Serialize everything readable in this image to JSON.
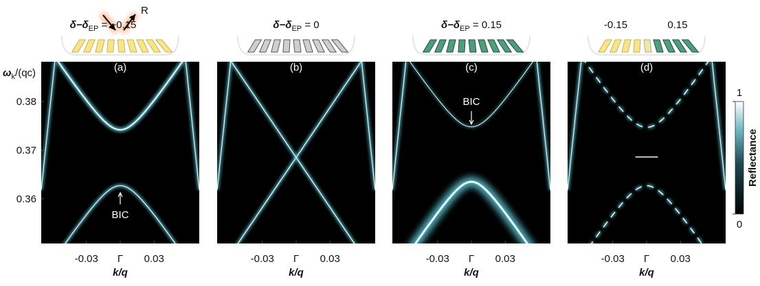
{
  "figure": {
    "y_label": {
      "main": "ω",
      "sub": "k",
      "rest": "/(qc)"
    },
    "x_label": "k/q",
    "ylim": [
      0.3508,
      0.3882
    ],
    "yticks": [
      0.38,
      0.37,
      0.36
    ],
    "xlim": [
      -0.07,
      0.07
    ],
    "xticks": [
      -0.03,
      {
        "value": 0,
        "label": "Γ"
      },
      0.03
    ],
    "panels": [
      {
        "label": "(a)",
        "header": {
          "main": "δ−δ",
          "sub": "EP",
          "rest": " = −0.15"
        },
        "arrow_label": "R",
        "annotation": "BIC"
      },
      {
        "label": "(b)",
        "header": {
          "main": "δ−δ",
          "sub": "EP",
          "rest": " = 0"
        }
      },
      {
        "label": "(c)",
        "header": {
          "main": "δ−δ",
          "sub": "EP",
          "rest": " = 0.15"
        },
        "annotation": "BIC"
      },
      {
        "label": "(d)",
        "header_left": "-0.15",
        "header_right": "0.15"
      }
    ],
    "colorbar": {
      "label": "Reflectance",
      "ticks": [
        1,
        0
      ]
    }
  }
}
